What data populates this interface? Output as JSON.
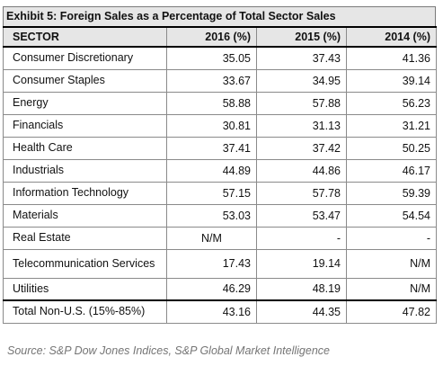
{
  "title": "Exhibit 5: Foreign Sales as a Percentage of Total Sector Sales",
  "headers": [
    "SECTOR",
    "2016 (%)",
    "2015 (%)",
    "2014 (%)"
  ],
  "rows": [
    [
      "Consumer Discretionary",
      "35.05",
      "37.43",
      "41.36"
    ],
    [
      "Consumer Staples",
      "33.67",
      "34.95",
      "39.14"
    ],
    [
      "Energy",
      "58.88",
      "57.88",
      "56.23"
    ],
    [
      "Financials",
      "30.81",
      "31.13",
      "31.21"
    ],
    [
      "Health Care",
      "37.41",
      "37.42",
      "50.25"
    ],
    [
      "Industrials",
      "44.89",
      "44.86",
      "46.17"
    ],
    [
      "Information Technology",
      "57.15",
      "57.78",
      "59.39"
    ],
    [
      "Materials",
      "53.03",
      "53.47",
      "54.54"
    ],
    [
      "Real Estate",
      "N/M",
      "-",
      "-"
    ],
    [
      "Telecommunication Services",
      "17.43",
      "19.14",
      "N/M"
    ],
    [
      "Utilities",
      "46.29",
      "48.19",
      "N/M"
    ],
    [
      "Total Non-U.S. (15%-85%)",
      "43.16",
      "44.35",
      "47.82"
    ]
  ],
  "source": "Source: S&P Dow Jones Indices, S&P Global Market Intelligence"
}
